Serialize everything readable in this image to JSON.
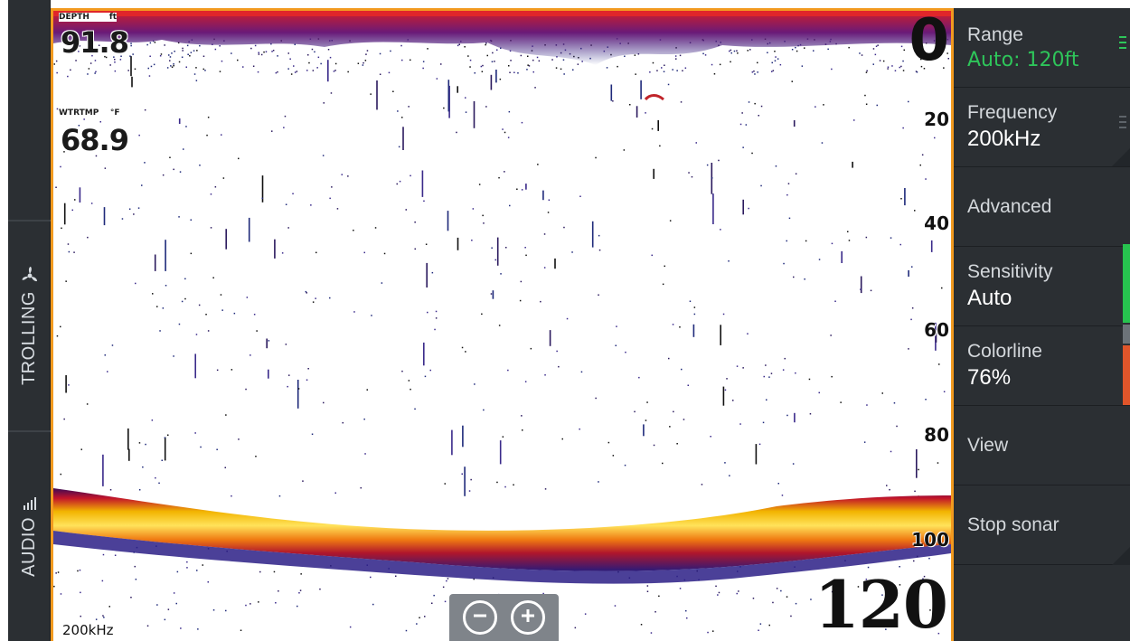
{
  "left_sidebar": {
    "tabs": [
      {
        "label": "TROLLING",
        "icon": "propeller-icon"
      },
      {
        "label": "AUDIO",
        "icon": "audio-bars-icon"
      }
    ]
  },
  "sonar": {
    "depth": {
      "label": "DEPTH",
      "unit": "ft",
      "value": "91.8"
    },
    "water_temp": {
      "label": "WTRTMP",
      "unit": "°F",
      "value": "68.9"
    },
    "range_top": "0",
    "range_bottom": "120",
    "scale_labels": [
      "20",
      "40",
      "60",
      "80",
      "100"
    ],
    "frequency": "200kHz",
    "zoom": {
      "out_icon": "minus-circle-icon",
      "in_icon": "plus-circle-icon"
    }
  },
  "menu": {
    "items": [
      {
        "label": "Range",
        "value": "Auto: 120ft",
        "value_color": "#2ec55a"
      },
      {
        "label": "Frequency",
        "value": "200kHz"
      },
      {
        "label": "Advanced",
        "value": ""
      },
      {
        "label": "Sensitivity",
        "value": "Auto"
      },
      {
        "label": "Colorline",
        "value": "76%"
      },
      {
        "label": "View",
        "value": ""
      },
      {
        "label": "Stop sonar",
        "value": ""
      }
    ]
  },
  "colors": {
    "sidebar_bg": "#2b2f33",
    "frame_border": "#f29a1f",
    "accent_green": "#2ec55a",
    "sensitivity_bar": "#27c34f",
    "colorline_bar": "#e0552a"
  }
}
